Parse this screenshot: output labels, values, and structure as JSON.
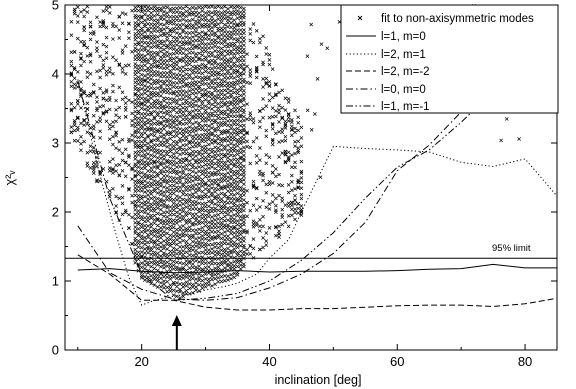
{
  "chart_data": {
    "type": "line",
    "xlabel": "inclination [deg]",
    "ylabel": "χ²ᵥ",
    "xlim": [
      8,
      85
    ],
    "ylim": [
      0,
      5
    ],
    "x_ticks": [
      20,
      40,
      60,
      80
    ],
    "y_ticks": [
      0,
      1,
      2,
      3,
      4,
      5
    ],
    "legend_position": "top-right",
    "limit_line": {
      "label": "95% limit",
      "y": 1.33
    },
    "arrow_x": 25.5,
    "series": [
      {
        "name": "fit to non-axisymmetric modes",
        "style": "scatter",
        "x": [],
        "y": []
      },
      {
        "name": "l=1, m=0",
        "style": "solid",
        "x": [
          10,
          15,
          20,
          25,
          30,
          35,
          40,
          45,
          50,
          55,
          60,
          65,
          70,
          75,
          80,
          85
        ],
        "y": [
          1.16,
          1.18,
          1.14,
          1.12,
          1.13,
          1.15,
          1.13,
          1.14,
          1.14,
          1.14,
          1.15,
          1.17,
          1.18,
          1.24,
          1.19,
          1.19
        ]
      },
      {
        "name": "l=2, m=1",
        "style": "dotted",
        "x": [
          10,
          13,
          16,
          18,
          20,
          22,
          25,
          28,
          30,
          33,
          35,
          38,
          40,
          43,
          45,
          50,
          55,
          60,
          65,
          70,
          75,
          80,
          85
        ],
        "y": [
          3.92,
          2.7,
          1.67,
          1.05,
          0.65,
          0.72,
          0.78,
          0.82,
          0.87,
          0.92,
          0.97,
          1.1,
          1.33,
          1.6,
          2.0,
          2.95,
          2.92,
          2.9,
          2.87,
          2.72,
          2.66,
          2.77,
          2.23
        ]
      },
      {
        "name": "l=2, m=-2",
        "style": "dashed",
        "x": [
          10,
          15,
          20,
          25,
          30,
          35,
          40,
          45,
          50,
          55,
          60,
          65,
          70,
          75,
          80,
          85
        ],
        "y": [
          1.38,
          1.1,
          0.72,
          0.72,
          0.62,
          0.58,
          0.58,
          0.6,
          0.6,
          0.62,
          0.64,
          0.65,
          0.65,
          0.63,
          0.67,
          0.75
        ]
      },
      {
        "name": "l=0, m=0",
        "style": "dashdot",
        "x": [
          10,
          15,
          20,
          25,
          30,
          35,
          40,
          45,
          50,
          55,
          60,
          65,
          70,
          75,
          80,
          85
        ],
        "y": [
          1.8,
          1.12,
          0.88,
          0.74,
          0.72,
          0.76,
          0.9,
          1.1,
          1.4,
          1.85,
          2.6,
          2.97,
          3.45,
          3.8,
          4.25,
          4.52
        ]
      },
      {
        "name": "l=1, m=-1",
        "style": "dashdotdot",
        "x": [
          10,
          15,
          20,
          25,
          30,
          35,
          40,
          45,
          50,
          55,
          60,
          65,
          70,
          75,
          80,
          85
        ],
        "y": [
          3.9,
          2.2,
          1.1,
          0.72,
          0.75,
          0.82,
          1.0,
          1.3,
          1.7,
          2.2,
          2.65,
          2.9,
          3.3,
          3.75,
          4.1,
          4.45
        ]
      }
    ]
  }
}
